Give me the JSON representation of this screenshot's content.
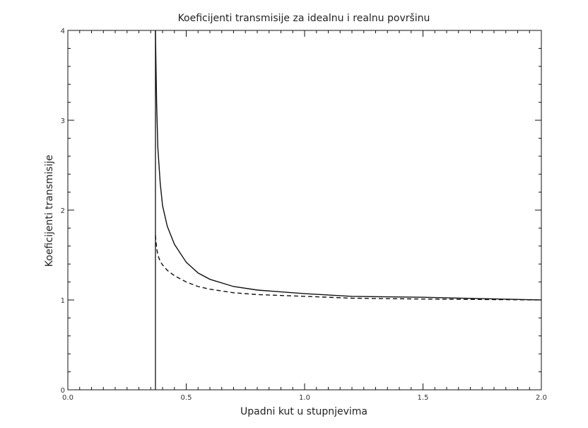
{
  "chart_data": {
    "type": "line",
    "title": "Koeficijenti transmisije za idealnu i realnu površinu",
    "xlabel": "Upadni kut u stupnjevima",
    "ylabel": "Koeficijenti transmisije",
    "xlim": [
      0.0,
      2.0
    ],
    "ylim": [
      0,
      4
    ],
    "x_ticks": [
      0.0,
      0.5,
      1.0,
      1.5,
      2.0
    ],
    "x_tick_labels": [
      "0.0",
      "0.5",
      "1.0",
      "1.5",
      "2.0"
    ],
    "y_ticks": [
      0,
      1,
      2,
      3,
      4
    ],
    "y_tick_labels": [
      "0",
      "1",
      "2",
      "3",
      "4"
    ],
    "grid": false,
    "vertical_line_x": 0.37,
    "series": [
      {
        "style": "solid",
        "x": [
          0.37,
          0.375,
          0.38,
          0.39,
          0.4,
          0.42,
          0.45,
          0.5,
          0.55,
          0.6,
          0.7,
          0.8,
          1.0,
          1.2,
          1.5,
          2.0
        ],
        "y": [
          4.0,
          3.2,
          2.7,
          2.3,
          2.05,
          1.82,
          1.62,
          1.42,
          1.3,
          1.23,
          1.15,
          1.11,
          1.07,
          1.04,
          1.03,
          1.0
        ]
      },
      {
        "style": "dashed",
        "x": [
          0.37,
          0.375,
          0.38,
          0.39,
          0.4,
          0.42,
          0.45,
          0.5,
          0.55,
          0.6,
          0.7,
          0.8,
          1.0,
          1.2,
          1.5,
          2.0
        ],
        "y": [
          1.72,
          1.58,
          1.5,
          1.43,
          1.39,
          1.33,
          1.27,
          1.2,
          1.15,
          1.12,
          1.08,
          1.06,
          1.04,
          1.02,
          1.01,
          1.0
        ]
      }
    ]
  }
}
